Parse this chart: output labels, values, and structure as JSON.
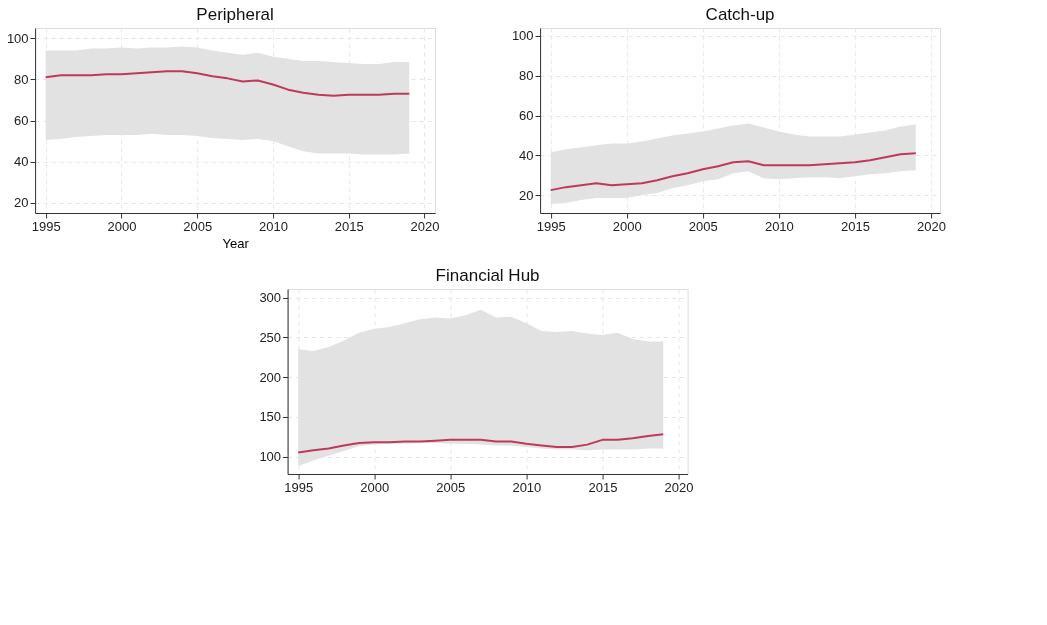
{
  "chart_data": [
    {
      "type": "line",
      "title": "Peripheral",
      "xlabel": "Year",
      "x": [
        1995,
        1996,
        1997,
        1998,
        1999,
        2000,
        2001,
        2002,
        2003,
        2004,
        2005,
        2006,
        2007,
        2008,
        2009,
        2010,
        2011,
        2012,
        2013,
        2014,
        2015,
        2016,
        2017,
        2018,
        2019
      ],
      "xlim": [
        1994.3,
        2020.7
      ],
      "xticks": [
        1995,
        2000,
        2005,
        2010,
        2015,
        2020
      ],
      "ylim": [
        15,
        105
      ],
      "yticks": [
        20,
        40,
        60,
        80,
        100
      ],
      "grid": true,
      "line_style": "solid",
      "series": [
        {
          "color": "#c0395a",
          "values": [
            81,
            82,
            82,
            82,
            82.5,
            82.5,
            83,
            83.5,
            84,
            84,
            83,
            81.5,
            80.5,
            79,
            79.5,
            77.5,
            75,
            73.5,
            72.5,
            72,
            72.5,
            72.5,
            72.5,
            73,
            73
          ],
          "upper": [
            94,
            94,
            94,
            95,
            95,
            95.5,
            95,
            95.5,
            95.5,
            96,
            95.5,
            94,
            93,
            92,
            93,
            91,
            90,
            89,
            89,
            88.5,
            88,
            87.5,
            87.5,
            88.5,
            88.5
          ],
          "lower": [
            50.5,
            51,
            52,
            52.5,
            53,
            53,
            53,
            53.5,
            53,
            53,
            52.5,
            51.5,
            51,
            50.5,
            51,
            50,
            47.5,
            45,
            44,
            44,
            44,
            43.5,
            43.5,
            43.5,
            44
          ]
        }
      ]
    },
    {
      "type": "line",
      "title": "Catch-up",
      "x": [
        1995,
        1996,
        1997,
        1998,
        1999,
        2000,
        2001,
        2002,
        2003,
        2004,
        2005,
        2006,
        2007,
        2008,
        2009,
        2010,
        2011,
        2012,
        2013,
        2014,
        2015,
        2016,
        2017,
        2018,
        2019
      ],
      "xlim": [
        1994.3,
        2020.6
      ],
      "xticks": [
        1995,
        2000,
        2005,
        2010,
        2015,
        2020
      ],
      "ylim": [
        11,
        104
      ],
      "yticks": [
        20,
        40,
        60,
        80,
        100
      ],
      "grid": true,
      "line_style": "solid",
      "series": [
        {
          "color": "#c0395a",
          "values": [
            22.5,
            24,
            25,
            26,
            25,
            25.5,
            26,
            27.5,
            29.5,
            31,
            33,
            34.5,
            36.5,
            37,
            35,
            35,
            35,
            35,
            35.5,
            36,
            36.5,
            37.5,
            39,
            40.5,
            41
          ],
          "upper": [
            41.5,
            43,
            44,
            45,
            46,
            46,
            47,
            48.5,
            50,
            51,
            52,
            53.5,
            55,
            56,
            54,
            52,
            50.5,
            49.5,
            49.5,
            49.5,
            50.5,
            51.5,
            52.5,
            54.5,
            55.5
          ],
          "lower": [
            15.5,
            16,
            17.5,
            18.5,
            18.5,
            18.5,
            20,
            21,
            23.5,
            25,
            27,
            28,
            31,
            32,
            28.5,
            28,
            28.5,
            29,
            29,
            28.5,
            29.5,
            30.5,
            31,
            32,
            32.5
          ]
        }
      ]
    },
    {
      "type": "line",
      "title": "Financial Hub",
      "x": [
        1995,
        1996,
        1997,
        1998,
        1999,
        2000,
        2001,
        2002,
        2003,
        2004,
        2005,
        2006,
        2007,
        2008,
        2009,
        2010,
        2011,
        2012,
        2013,
        2014,
        2015,
        2016,
        2017,
        2018,
        2019
      ],
      "xlim": [
        1994.3,
        2020.6
      ],
      "xticks": [
        1995,
        2000,
        2005,
        2010,
        2015,
        2020
      ],
      "ylim": [
        78,
        311
      ],
      "yticks": [
        100,
        150,
        200,
        250,
        300
      ],
      "grid": true,
      "line_style": "solid",
      "series": [
        {
          "color": "#c0395a",
          "values": [
            105,
            108,
            110,
            114,
            117,
            118,
            118,
            119,
            119,
            120,
            121,
            121,
            121,
            119,
            119,
            116,
            114,
            112,
            112,
            115,
            121,
            121,
            123,
            126,
            128
          ],
          "upper": [
            235,
            233,
            238,
            246,
            256,
            261,
            263,
            268,
            273,
            275,
            274,
            278,
            285,
            275,
            276,
            268,
            258,
            257,
            258,
            255,
            253,
            256,
            248,
            245,
            245
          ],
          "lower": [
            88,
            95,
            101,
            107,
            113,
            115,
            116,
            116,
            117,
            117,
            116,
            116,
            115,
            114,
            114,
            112,
            110,
            109,
            109,
            108,
            109,
            109,
            109,
            110,
            110
          ]
        }
      ]
    }
  ]
}
